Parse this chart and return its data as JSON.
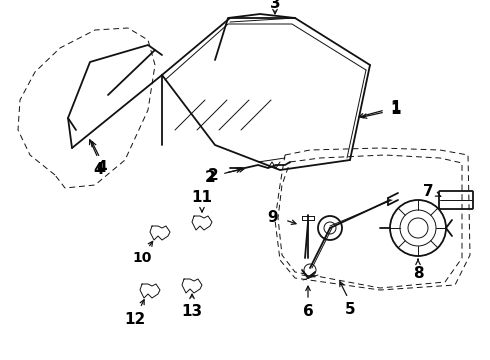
{
  "bg_color": "#ffffff",
  "line_color": "#111111",
  "label_color": "#000000",
  "figsize": [
    4.9,
    3.6
  ],
  "dpi": 100,
  "lw_main": 1.3,
  "lw_thin": 0.7,
  "lw_dash": 0.8
}
